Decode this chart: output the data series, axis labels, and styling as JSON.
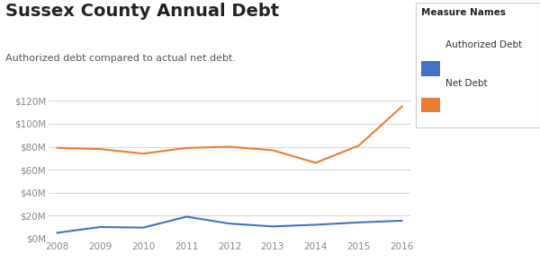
{
  "title": "Sussex County Annual Debt",
  "subtitle": "Authorized debt compared to actual net debt.",
  "years": [
    2008,
    2009,
    2010,
    2011,
    2012,
    2013,
    2014,
    2015,
    2016
  ],
  "authorized_debt": [
    5000000,
    10000000,
    9500000,
    19000000,
    13000000,
    10500000,
    12000000,
    14000000,
    15500000
  ],
  "net_debt": [
    79000000,
    78000000,
    74000000,
    79000000,
    80000000,
    77000000,
    66000000,
    81000000,
    115000000
  ],
  "authorized_color": "#4472C4",
  "net_debt_color": "#ED7D31",
  "legend_title": "Measure Names",
  "legend_authorized": "Authorized Debt",
  "legend_net": "Net Debt",
  "ylim": [
    0,
    130000000
  ],
  "yticks": [
    0,
    20000000,
    40000000,
    60000000,
    80000000,
    100000000,
    120000000
  ],
  "background_color": "#FFFFFF",
  "grid_color": "#D9D9D9",
  "title_fontsize": 14,
  "subtitle_fontsize": 8,
  "axis_label_color": "#888888",
  "line_width": 1.5
}
